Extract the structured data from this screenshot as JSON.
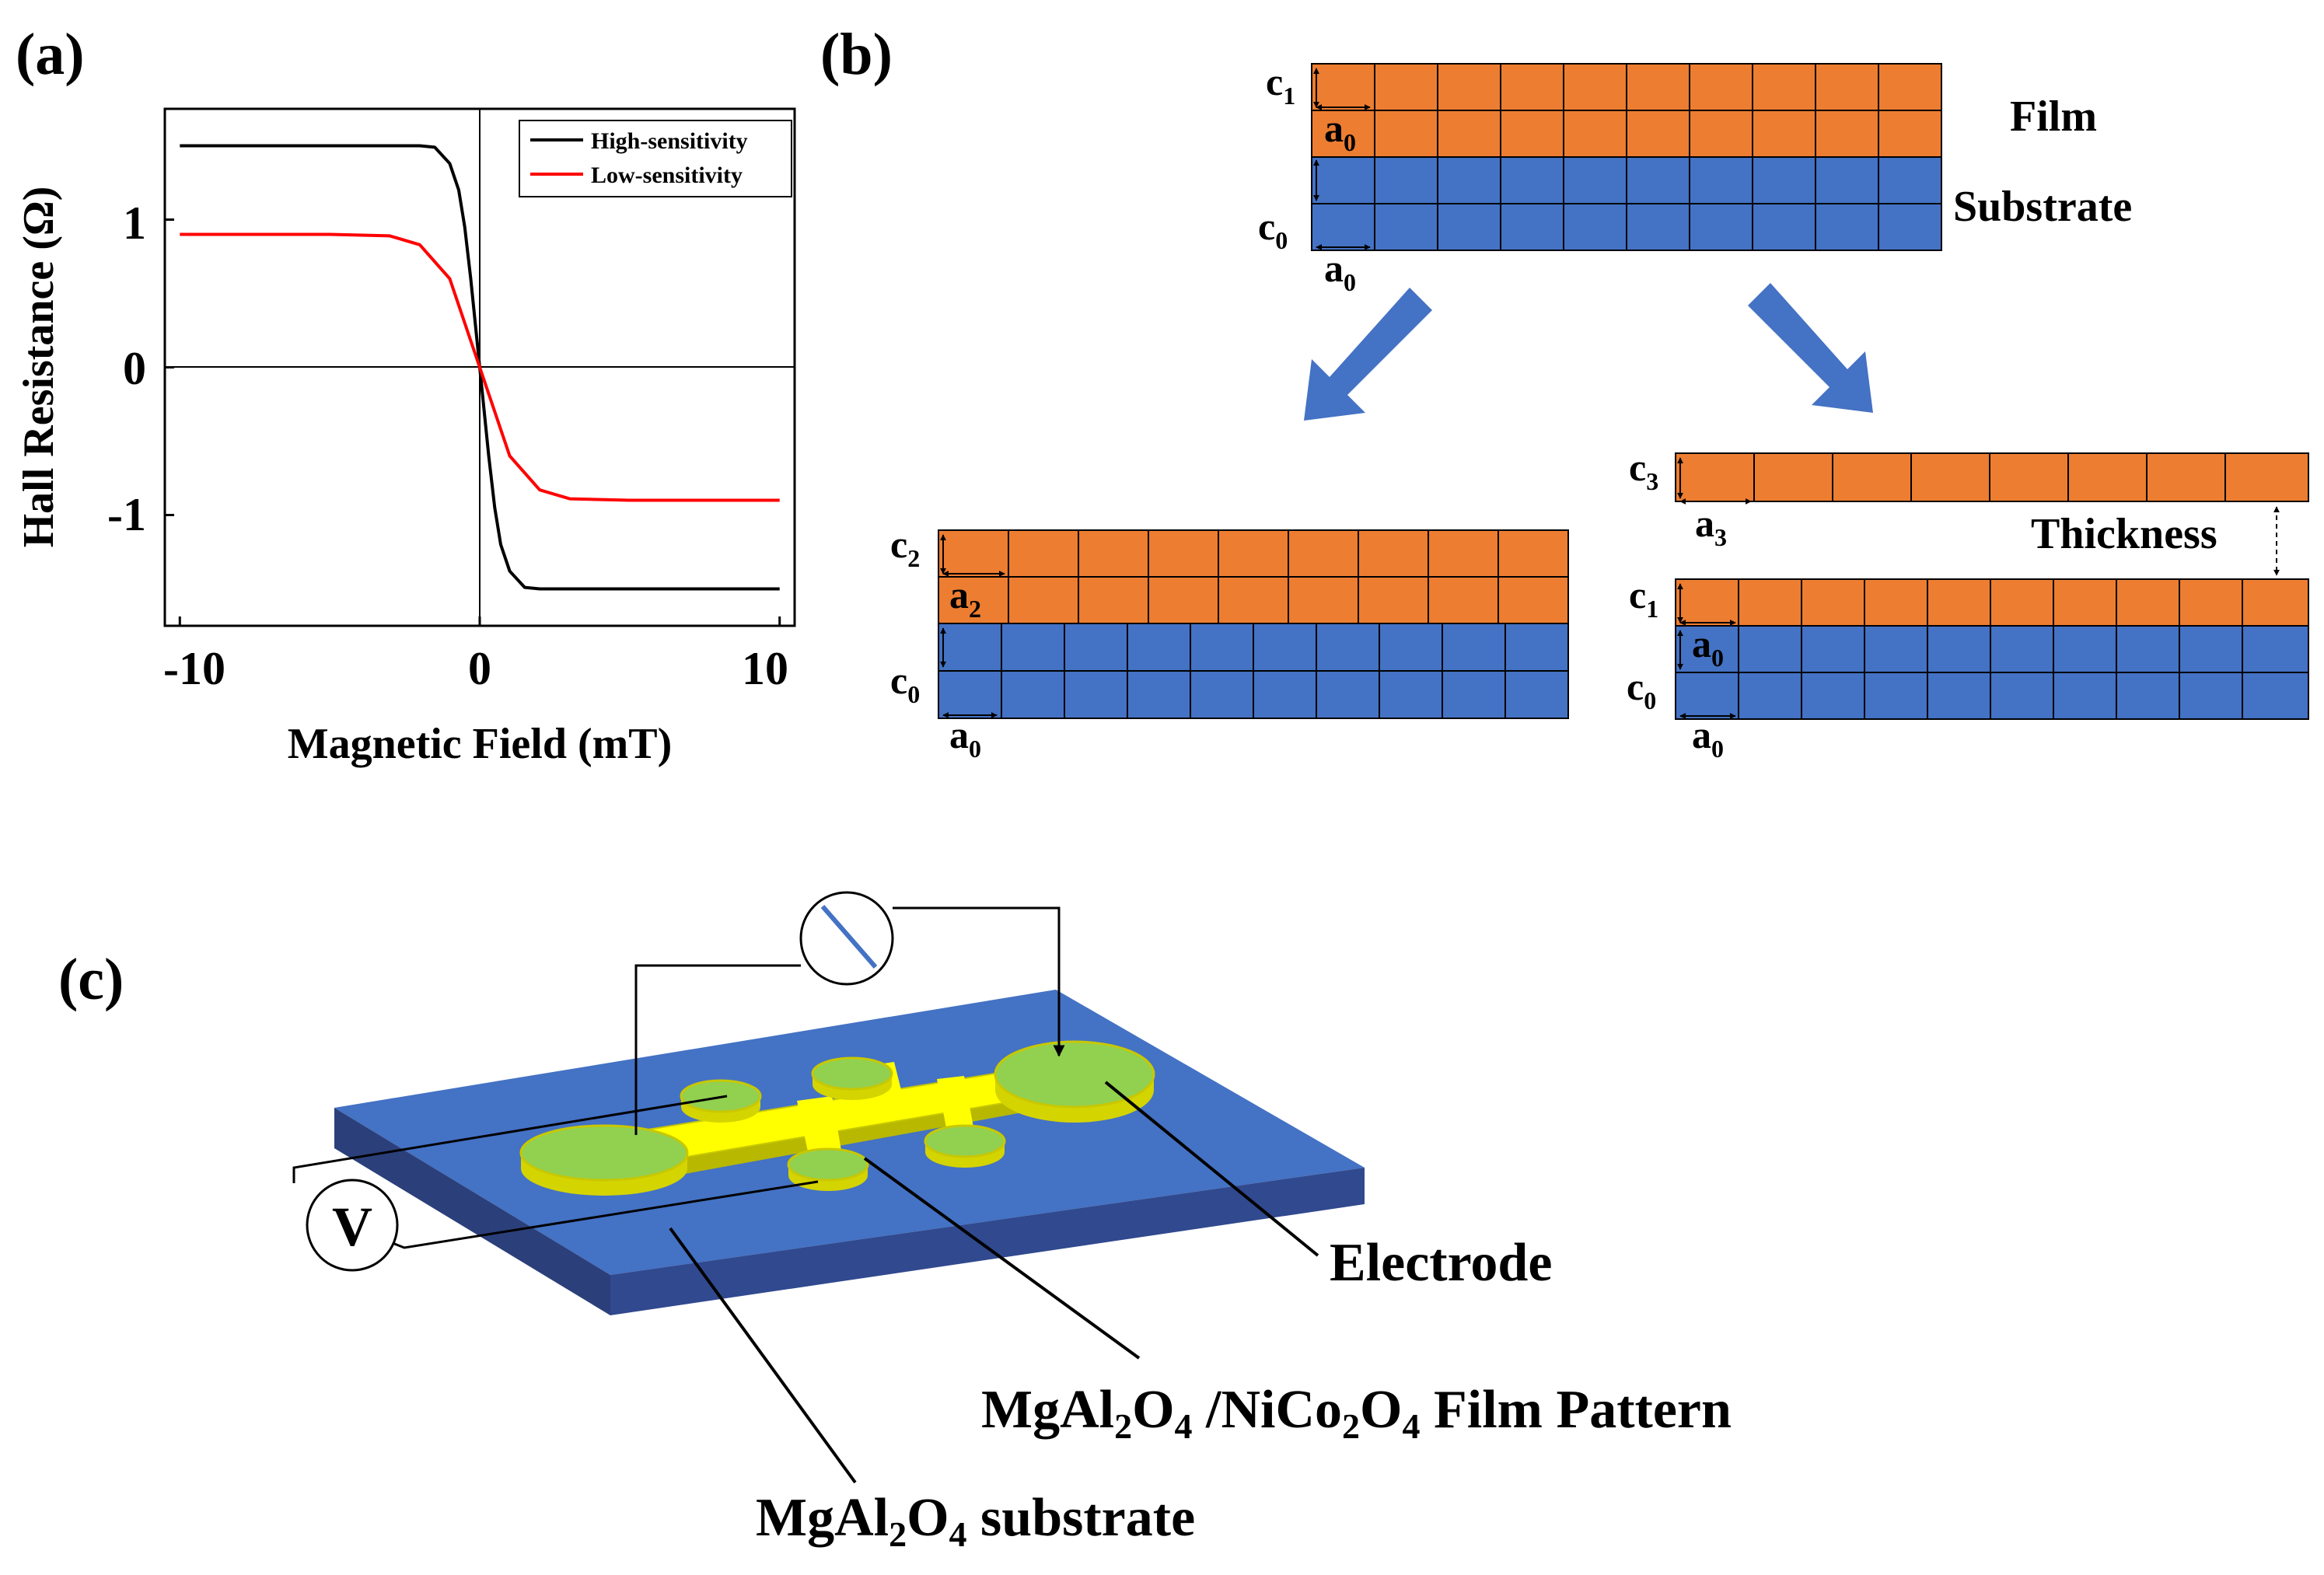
{
  "panels": {
    "a": {
      "label": "(a)"
    },
    "b": {
      "label": "(b)"
    },
    "c": {
      "label": "(c)"
    }
  },
  "chart_data": {
    "type": "line",
    "title": "",
    "xlabel": "Magnetic Field (mT)",
    "ylabel": "Hall Resistance (Ω)",
    "xlim": [
      -10.5,
      10.5
    ],
    "ylim": [
      -1.75,
      1.75
    ],
    "xticks": [
      -10,
      0,
      10
    ],
    "xtick_labels": [
      "-10",
      "0",
      "10"
    ],
    "yticks": [
      1,
      0,
      -1
    ],
    "ytick_labels": [
      "1",
      "0",
      "-1"
    ],
    "zero_lines": true,
    "legend_position": "top-right",
    "series": [
      {
        "name": "High-sensitivity",
        "color": "#000000",
        "x": [
          -10,
          -5,
          -2,
          -1.5,
          -1,
          -0.7,
          -0.5,
          -0.3,
          0,
          0.3,
          0.5,
          0.7,
          1,
          1.5,
          2,
          5,
          10
        ],
        "y": [
          1.5,
          1.5,
          1.5,
          1.49,
          1.38,
          1.2,
          0.95,
          0.6,
          0,
          -0.6,
          -0.95,
          -1.2,
          -1.38,
          -1.49,
          -1.5,
          -1.5,
          -1.5
        ]
      },
      {
        "name": "Low-sensitivity",
        "color": "#ff0000",
        "x": [
          -10,
          -5,
          -3,
          -2,
          -1,
          0,
          1,
          2,
          3,
          5,
          10
        ],
        "y": [
          0.9,
          0.9,
          0.89,
          0.83,
          0.6,
          0,
          -0.6,
          -0.83,
          -0.89,
          -0.9,
          -0.9
        ]
      }
    ]
  },
  "lattice": {
    "film_label": "Film",
    "substrate_label": "Substrate",
    "thickness_label": "Thickness",
    "film_color": "#ed7d31",
    "substrate_color": "#4472c4",
    "arrow_color": "#4472c4",
    "c1": {
      "base": "c",
      "sub": "1"
    },
    "a0": {
      "base": "a",
      "sub": "0"
    },
    "c0": {
      "base": "c",
      "sub": "0"
    },
    "c2": {
      "base": "c",
      "sub": "2"
    },
    "a2": {
      "base": "a",
      "sub": "2"
    },
    "c3": {
      "base": "c",
      "sub": "3"
    },
    "a3": {
      "base": "a",
      "sub": "3"
    }
  },
  "device": {
    "substrate_color": "#4472c4",
    "substrate_side_color": "#2b3f7a",
    "film_color": "#ffff00",
    "pad_color": "#92d050",
    "voltmeter_symbol": "V",
    "electrode_label": "Electrode",
    "film_label": {
      "p1": "MgAl",
      "s1": "2",
      "p2": "O",
      "s2": "4",
      "p3": " /NiCo",
      "s3": "2",
      "p4": "O",
      "s4": "4",
      "p5": " Film Pattern"
    },
    "substrate_label": {
      "p1": "MgAl",
      "s1": "2",
      "p2": "O",
      "s2": "4",
      "p3": " substrate"
    }
  }
}
